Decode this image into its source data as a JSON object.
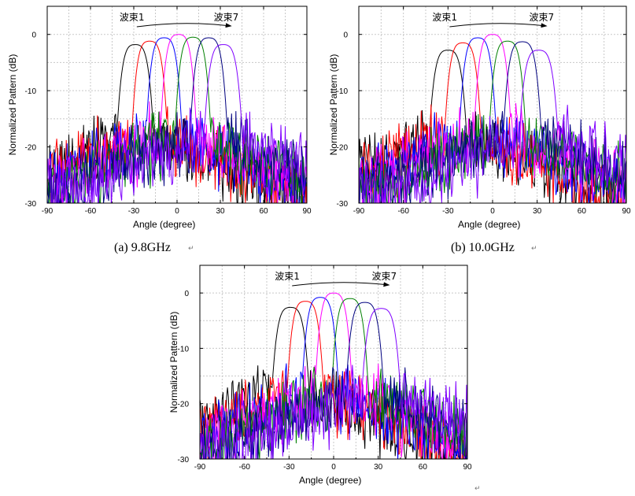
{
  "figure": {
    "panels": [
      {
        "caption": "(a) 9.8GHz",
        "caption_mark": "↵"
      },
      {
        "caption": "(b) 10.0GHz",
        "caption_mark": "↵"
      },
      {
        "caption": "",
        "caption_mark": "↵"
      }
    ],
    "colors": [
      "#000000",
      "#ff0000",
      "#0000ff",
      "#ff00ff",
      "#007f00",
      "#00007f",
      "#7f00ff"
    ]
  },
  "chart_data": [
    {
      "type": "line",
      "xlabel": "Angle (degree)",
      "ylabel": "Normalized Pattern (dB)",
      "xlim": [
        -90,
        90
      ],
      "ylim": [
        -30,
        5
      ],
      "xticks": [
        "-90",
        "-60",
        "-30",
        "0",
        "30",
        "60",
        "90"
      ],
      "yticks": [
        "0",
        "-10",
        "-20",
        "-30"
      ],
      "grid": true,
      "annotations": {
        "beam_first": "波束1",
        "beam_last": "波束7"
      },
      "series": [
        {
          "center": -29,
          "peak": -1.8,
          "halfwidth": 13.5
        },
        {
          "center": -19,
          "peak": -1.2,
          "halfwidth": 13
        },
        {
          "center": -9,
          "peak": -0.6,
          "halfwidth": 13
        },
        {
          "center": 1,
          "peak": 0,
          "halfwidth": 13
        },
        {
          "center": 11,
          "peak": -0.5,
          "halfwidth": 13
        },
        {
          "center": 22,
          "peak": -0.6,
          "halfwidth": 13.5
        },
        {
          "center": 32,
          "peak": -1.8,
          "halfwidth": 14
        }
      ]
    },
    {
      "type": "line",
      "xlabel": "Angle (degree)",
      "ylabel": "Normalized Pattern (dB)",
      "xlim": [
        -90,
        90
      ],
      "ylim": [
        -30,
        5
      ],
      "xticks": [
        "-90",
        "-60",
        "-30",
        "0",
        "30",
        "60",
        "90"
      ],
      "yticks": [
        "0",
        "-10",
        "-20",
        "-30"
      ],
      "grid": true,
      "annotations": {
        "beam_first": "波束1",
        "beam_last": "波束7"
      },
      "series": [
        {
          "center": -30,
          "peak": -2.8,
          "halfwidth": 13.5
        },
        {
          "center": -20,
          "peak": -1.5,
          "halfwidth": 13
        },
        {
          "center": -10,
          "peak": -0.6,
          "halfwidth": 13
        },
        {
          "center": 0,
          "peak": 0,
          "halfwidth": 13
        },
        {
          "center": 10,
          "peak": -1.2,
          "halfwidth": 13
        },
        {
          "center": 20,
          "peak": -1.3,
          "halfwidth": 13.5
        },
        {
          "center": 31,
          "peak": -2.8,
          "halfwidth": 14
        }
      ]
    },
    {
      "type": "line",
      "xlabel": "Angle (degree)",
      "ylabel": "Normalized Pattern (dB)",
      "xlim": [
        -90,
        90
      ],
      "ylim": [
        -30,
        5
      ],
      "xticks": [
        "-90",
        "-60",
        "-30",
        "0",
        "30",
        "60",
        "90"
      ],
      "yticks": [
        "0",
        "-10",
        "-20",
        "-30"
      ],
      "grid": true,
      "annotations": {
        "beam_first": "波束1",
        "beam_last": "波束7"
      },
      "series": [
        {
          "center": -29,
          "peak": -2.6,
          "halfwidth": 13.5
        },
        {
          "center": -19,
          "peak": -1.5,
          "halfwidth": 13
        },
        {
          "center": -9,
          "peak": -0.8,
          "halfwidth": 13
        },
        {
          "center": 0,
          "peak": 0,
          "halfwidth": 13
        },
        {
          "center": 11,
          "peak": -1.0,
          "halfwidth": 13
        },
        {
          "center": 21,
          "peak": -1.7,
          "halfwidth": 13.5
        },
        {
          "center": 32,
          "peak": -2.8,
          "halfwidth": 14
        }
      ]
    }
  ]
}
